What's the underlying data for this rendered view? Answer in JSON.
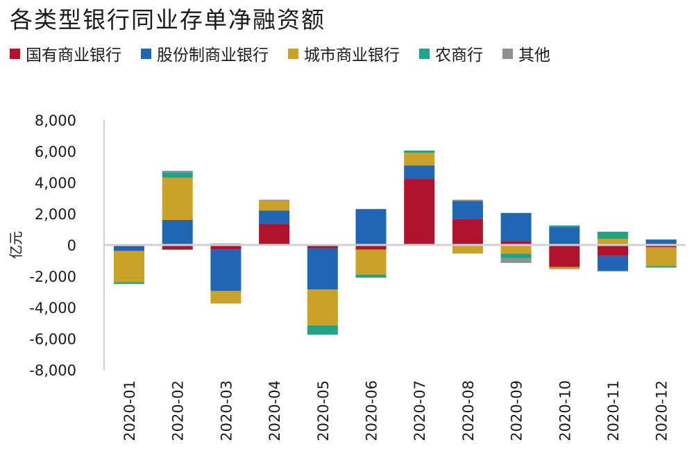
{
  "chart_data": {
    "type": "bar",
    "stacked": true,
    "title": "各类型银行同业存单净融资额",
    "ylabel": "亿元",
    "xlabel": "",
    "ylim": [
      -8000,
      8000
    ],
    "yticks": [
      8000,
      6000,
      4000,
      2000,
      0,
      -2000,
      -4000,
      -6000,
      -8000
    ],
    "ytick_labels": [
      "8,000",
      "6,000",
      "4,000",
      "2,000",
      "0",
      "-2,000",
      "-4,000",
      "-6,000",
      "-8,000"
    ],
    "legend_position": "top",
    "grid": false,
    "categories": [
      "2020-01",
      "2020-02",
      "2020-03",
      "2020-04",
      "2020-05",
      "2020-06",
      "2020-07",
      "2020-08",
      "2020-09",
      "2020-10",
      "2020-11",
      "2020-12"
    ],
    "series": [
      {
        "name": "国有商业银行",
        "color": "#b0132b",
        "values": [
          -80,
          -300,
          -300,
          1350,
          -200,
          -300,
          4250,
          1650,
          250,
          -1400,
          -700,
          -150
        ]
      },
      {
        "name": "股份制商业银行",
        "color": "#1f66b5",
        "values": [
          -300,
          1600,
          -2650,
          850,
          -2650,
          2300,
          850,
          1150,
          1800,
          1150,
          -950,
          350
        ]
      },
      {
        "name": "城市商业银行",
        "color": "#c9a227",
        "values": [
          -2000,
          2700,
          -800,
          650,
          -2300,
          -1600,
          800,
          -550,
          -550,
          -150,
          400,
          -1200
        ]
      },
      {
        "name": "农商行",
        "color": "#22a389",
        "values": [
          -120,
          350,
          0,
          0,
          -600,
          -200,
          150,
          0,
          -300,
          100,
          450,
          -100
        ]
      },
      {
        "name": "其他",
        "color": "#8f8f8f",
        "values": [
          0,
          100,
          100,
          50,
          0,
          0,
          0,
          100,
          -300,
          0,
          -50,
          0
        ]
      }
    ]
  }
}
